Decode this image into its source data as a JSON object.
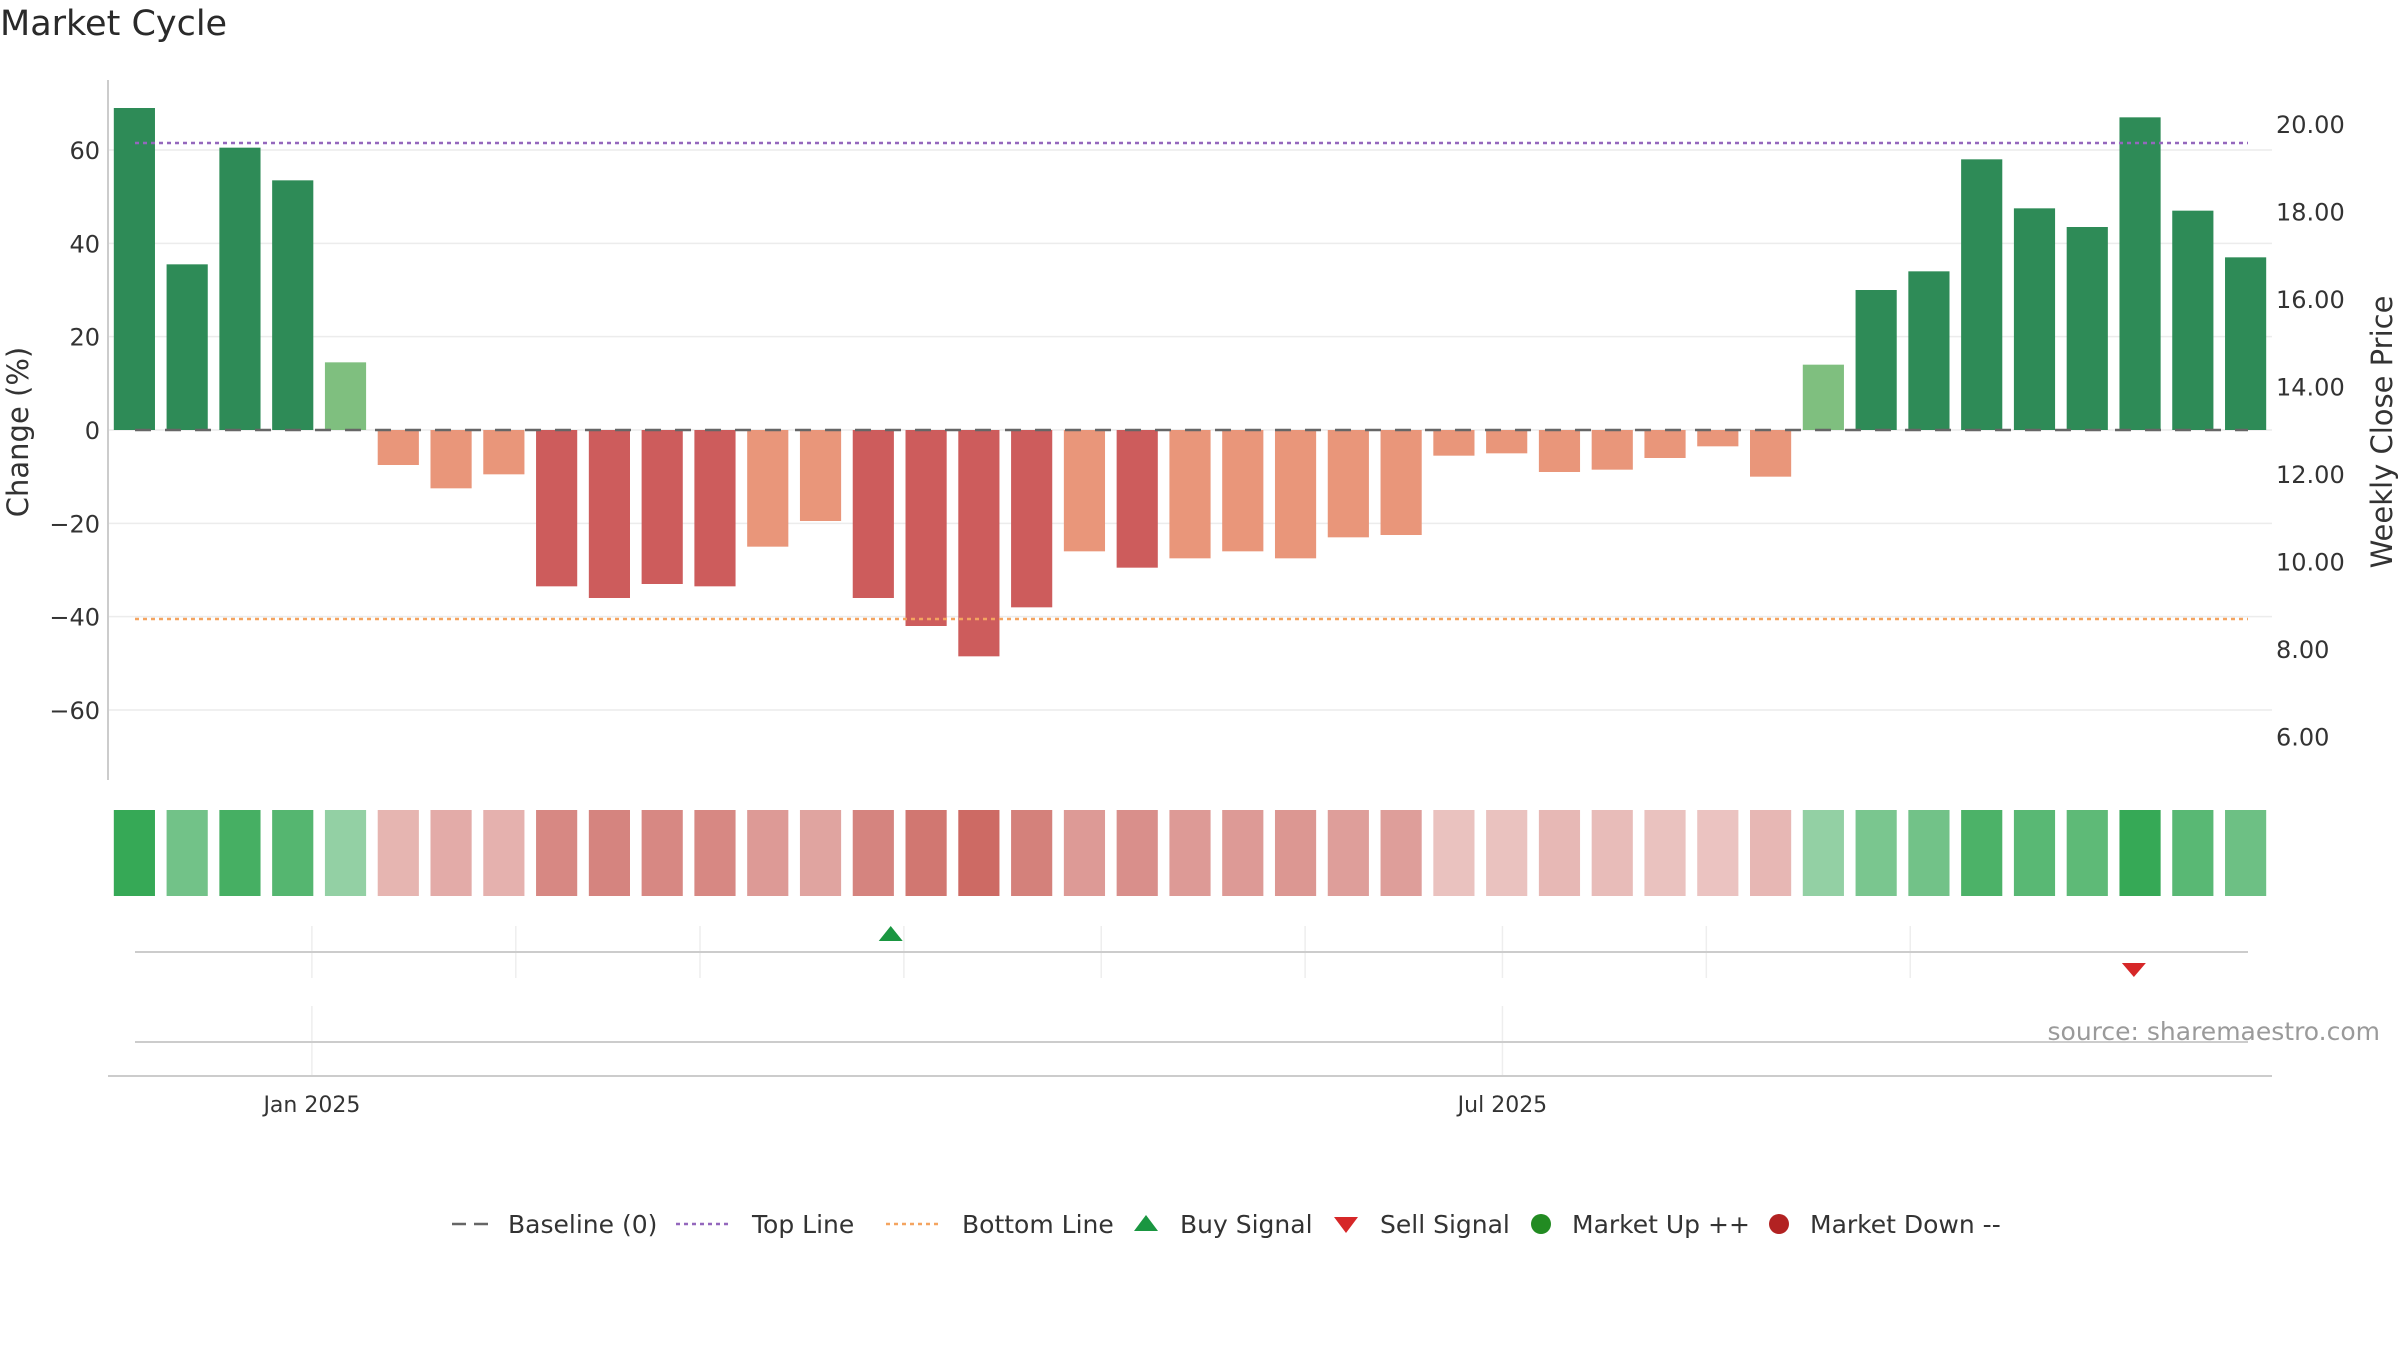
{
  "chart_data": {
    "type": "bar",
    "title": "Market Cycle",
    "ylabel": "Change (%)",
    "y2label": "Weekly Close Price",
    "ylim": [
      -75,
      75
    ],
    "y2lim": [
      5,
      21
    ],
    "yticks": [
      "60",
      "40",
      "20",
      "0",
      "−20",
      "−40",
      "−60"
    ],
    "yticks_values": [
      60,
      40,
      20,
      0,
      -20,
      -40,
      -60
    ],
    "y2ticks": [
      "20.00",
      "18.00",
      "16.00",
      "14.00",
      "12.00",
      "10.00",
      "8.00",
      "6.00"
    ],
    "y2ticks_values": [
      20,
      18,
      16,
      14,
      12,
      10,
      8,
      6
    ],
    "xticks": [
      "Jan 2025",
      "Jul 2025"
    ],
    "x_start": "2024-12-01",
    "x_end": "2025-10-26",
    "xticks_dates": [
      "2025-01-01",
      "2025-07-01"
    ],
    "week_dates": [
      "2024-12-01",
      "2024-12-08",
      "2024-12-15",
      "2024-12-22",
      "2024-12-29",
      "2025-01-05",
      "2025-01-12",
      "2025-01-19",
      "2025-01-26",
      "2025-02-02",
      "2025-02-09",
      "2025-02-16",
      "2025-02-23",
      "2025-03-02",
      "2025-03-09",
      "2025-03-16",
      "2025-03-23",
      "2025-03-30",
      "2025-04-06",
      "2025-04-13",
      "2025-04-20",
      "2025-04-27",
      "2025-05-04",
      "2025-05-11",
      "2025-05-18",
      "2025-05-25",
      "2025-06-01",
      "2025-06-08",
      "2025-06-15",
      "2025-06-22",
      "2025-06-29",
      "2025-07-06",
      "2025-07-13",
      "2025-07-20",
      "2025-07-27",
      "2025-08-03",
      "2025-08-10",
      "2025-08-17",
      "2025-08-24",
      "2025-08-31",
      "2025-09-07"
    ],
    "values": [
      69,
      35.5,
      60.5,
      53.5,
      14.5,
      -7.5,
      -12.5,
      -9.5,
      -33.5,
      -36,
      -33,
      -33.5,
      -25,
      -19.5,
      -36,
      -42,
      -48.5,
      -38,
      -26,
      -29.5,
      -27.5,
      -26,
      -27.5,
      -23,
      -22.5,
      -5.5,
      -5,
      -9,
      -8.5,
      -6,
      -3.5,
      -10,
      14,
      30,
      34,
      58,
      47.5,
      43.5,
      67,
      47,
      37
    ],
    "intensity": [
      0.95,
      0.55,
      0.85,
      0.75,
      0.35,
      0.22,
      0.28,
      0.25,
      0.55,
      0.58,
      0.55,
      0.55,
      0.42,
      0.35,
      0.58,
      0.68,
      0.78,
      0.62,
      0.42,
      0.5,
      0.42,
      0.42,
      0.45,
      0.38,
      0.38,
      0.12,
      0.12,
      0.18,
      0.16,
      0.12,
      0.1,
      0.2,
      0.35,
      0.5,
      0.55,
      0.8,
      0.72,
      0.68,
      0.95,
      0.72,
      0.58
    ],
    "top_line": 61.5,
    "bottom_line": -40.5,
    "buy_signals": [
      "2025-03-30"
    ],
    "sell_signals": [
      "2025-10-05"
    ],
    "source": "source: sharemaestro.com",
    "colors": {
      "up_strong": "#2e8b57",
      "up_light": "#7fbf7f",
      "down_strong": "#cd5c5c",
      "down_light": "#e9967a",
      "top_line": "#9467bd",
      "bottom_line": "#f4a460",
      "baseline": "#666666",
      "buy": "#1a9641",
      "sell": "#d62728",
      "market_up": "#228b22",
      "market_down": "#b22222"
    },
    "legend": [
      {
        "label": "Baseline (0)",
        "type": "dash"
      },
      {
        "label": "Top Line",
        "type": "dot-purple"
      },
      {
        "label": "Bottom Line",
        "type": "dot-orange"
      },
      {
        "label": "Buy Signal",
        "type": "tri-up"
      },
      {
        "label": "Sell Signal",
        "type": "tri-down"
      },
      {
        "label": "Market Up ++",
        "type": "circle-green"
      },
      {
        "label": "Market Down --",
        "type": "circle-red"
      }
    ]
  }
}
